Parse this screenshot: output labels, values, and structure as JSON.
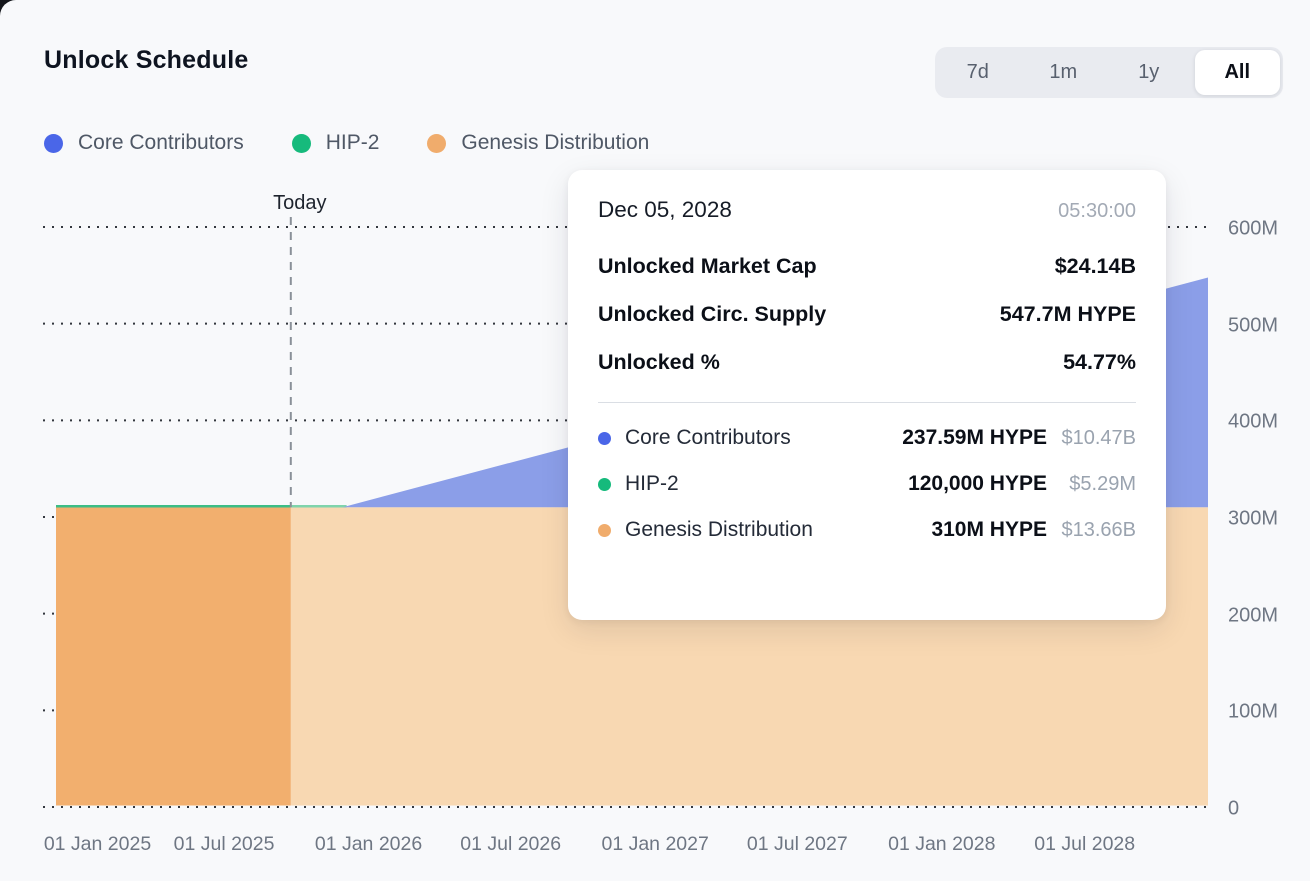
{
  "header": {
    "title": "Unlock Schedule",
    "range_options": [
      {
        "label": "7d",
        "active": false
      },
      {
        "label": "1m",
        "active": false
      },
      {
        "label": "1y",
        "active": false
      },
      {
        "label": "All",
        "active": true
      }
    ]
  },
  "legend": [
    {
      "label": "Core Contributors",
      "color": "#4A66E8"
    },
    {
      "label": "HIP-2",
      "color": "#16BA7C"
    },
    {
      "label": "Genesis Distribution",
      "color": "#F0AC6C"
    }
  ],
  "chart_data": {
    "type": "area",
    "stacked": true,
    "unit": "HYPE tokens",
    "grid": "dotted-horizontal",
    "x_domain": [
      "2024-11-29",
      "2028-12-05"
    ],
    "ylim": [
      0,
      600000000
    ],
    "today_marker": {
      "label": "Today",
      "date": "2025-09-24"
    },
    "x_ticks": [
      {
        "label": "01 Jan 2025",
        "date": "2025-01-01"
      },
      {
        "label": "01 Jul 2025",
        "date": "2025-07-01"
      },
      {
        "label": "01 Jan 2026",
        "date": "2026-01-01"
      },
      {
        "label": "01 Jul 2026",
        "date": "2026-07-01"
      },
      {
        "label": "01 Jan 2027",
        "date": "2027-01-01"
      },
      {
        "label": "01 Jul 2027",
        "date": "2027-07-01"
      },
      {
        "label": "01 Jan 2028",
        "date": "2028-01-01"
      },
      {
        "label": "01 Jul 2028",
        "date": "2028-07-01"
      }
    ],
    "y_ticks": [
      {
        "label": "0",
        "value": 0
      },
      {
        "label": "100M",
        "value": 100000000
      },
      {
        "label": "200M",
        "value": 200000000
      },
      {
        "label": "300M",
        "value": 300000000
      },
      {
        "label": "400M",
        "value": 400000000
      },
      {
        "label": "500M",
        "value": 500000000
      },
      {
        "label": "600M",
        "value": 600000000
      }
    ],
    "series": [
      {
        "name": "Genesis Distribution",
        "color_past": "#F2AF6E",
        "color_future": "#F8D8B2",
        "points": [
          {
            "date": "2024-11-29",
            "value": 310000000
          },
          {
            "date": "2028-12-05",
            "value": 310000000
          }
        ]
      },
      {
        "name": "HIP-2",
        "color_past": "#3CBD86",
        "color_future": "#7FD4AC",
        "points": [
          {
            "date": "2024-11-29",
            "value": 120000
          },
          {
            "date": "2028-12-05",
            "value": 120000
          }
        ]
      },
      {
        "name": "Core Contributors",
        "color_future": "#8B9EE8",
        "points": [
          {
            "date": "2024-11-29",
            "value": 0
          },
          {
            "date": "2025-11-29",
            "value": 0
          },
          {
            "date": "2028-12-05",
            "value": 237590000
          }
        ]
      }
    ]
  },
  "tooltip": {
    "date": "Dec 05, 2028",
    "time": "05:30:00",
    "stats": [
      {
        "label": "Unlocked Market Cap",
        "value": "$24.14B"
      },
      {
        "label": "Unlocked Circ. Supply",
        "value": "547.7M HYPE"
      },
      {
        "label": "Unlocked %",
        "value": "54.77%"
      }
    ],
    "series": [
      {
        "name": "Core Contributors",
        "color": "#4A66E8",
        "amount": "237.59M HYPE",
        "usd": "$10.47B"
      },
      {
        "name": "HIP-2",
        "color": "#16BA7C",
        "amount": "120,000 HYPE",
        "usd": "$5.29M"
      },
      {
        "name": "Genesis Distribution",
        "color": "#F0AC6C",
        "amount": "310M HYPE",
        "usd": "$13.66B"
      }
    ]
  },
  "style": {
    "grid_dot_color": "#33373E",
    "today_line_color": "#8A9099",
    "axis_text_color": "#6E7683"
  }
}
